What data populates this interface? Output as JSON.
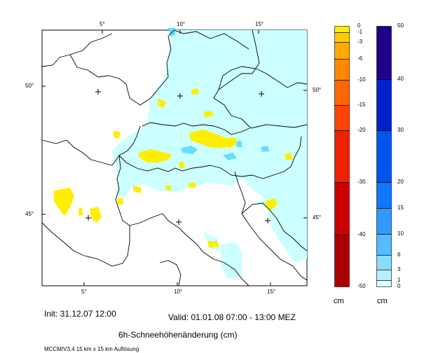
{
  "map": {
    "lon_ticks_top": [
      "5°",
      "10°",
      "15°"
    ],
    "lon_ticks_bottom": [
      "5°",
      "10°",
      "15°"
    ],
    "lat_ticks_left": [
      "50°",
      "45°"
    ],
    "lat_ticks_right": [
      "50°",
      "45°"
    ],
    "colors": {
      "background": "#ffffff",
      "light_cyan": "#ccffff",
      "cyan": "#66ddff",
      "yellow": "#ffee00"
    }
  },
  "colorbar_negative": {
    "unit": "cm",
    "labels": [
      "0",
      "-1",
      "-3",
      "-6",
      "-10",
      "-15",
      "-20",
      "-30",
      "-40",
      "-50"
    ],
    "colors": [
      "#ffee00",
      "#ffcc00",
      "#ffaa00",
      "#ff8800",
      "#ff6600",
      "#ff4400",
      "#ee2200",
      "#cc0000",
      "#aa0000"
    ]
  },
  "colorbar_positive": {
    "unit": "cm",
    "labels": [
      "50",
      "40",
      "30",
      "20",
      "15",
      "10",
      "6",
      "3",
      "1",
      "0"
    ],
    "colors": [
      "#220088",
      "#0022cc",
      "#0055ee",
      "#1177ff",
      "#3399ff",
      "#55bbff",
      "#88ddff",
      "#bbeeff",
      "#ddffff"
    ]
  },
  "footer": {
    "init": "Init: 31.12.07 12:00",
    "valid": "Valid: 01.01.08 07:00 - 13:00 MEZ",
    "title": "6h-Schneehöhenänderung (cm)",
    "model": "MCCM/V3.4 15 km x 15 km Auflösung"
  }
}
